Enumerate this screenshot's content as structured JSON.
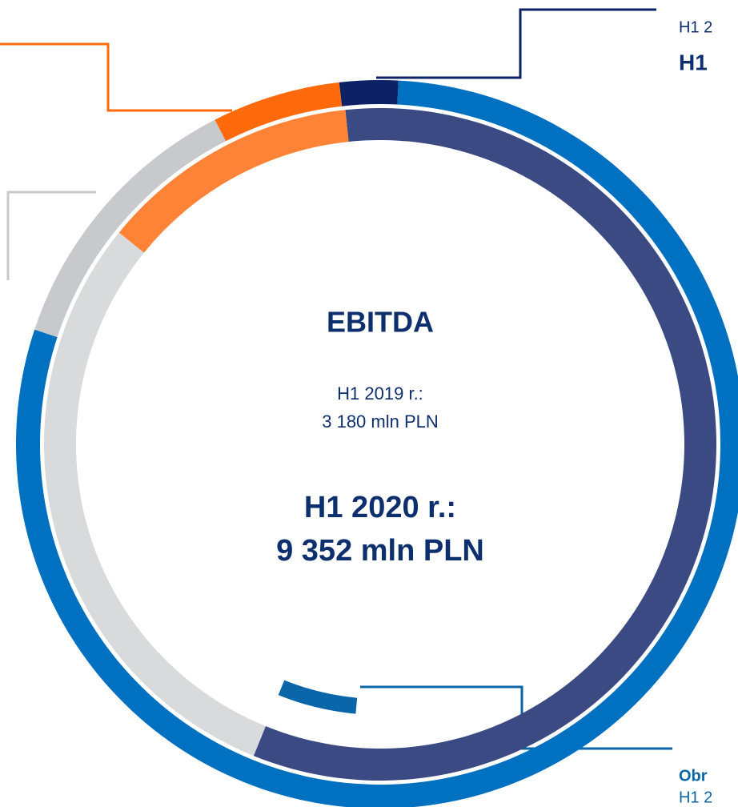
{
  "chart_data": {
    "type": "donut",
    "title": "EBITDA",
    "annotations": [
      "H1 2019 r.:",
      "3 180 mln PLN",
      "H1 2020 r.:",
      "9 352 mln PLN"
    ],
    "edge_labels": [
      "H1 2",
      "H1",
      "Obr",
      "H1 2"
    ],
    "series": [
      {
        "colors": [
          "#0d2166",
          "#0070c0",
          "#c8c9cc",
          "#ff6a0d"
        ],
        "values": [
          2.6,
          79.3,
          12.4,
          5.7
        ]
      },
      {
        "colors": [
          "#3b4a82",
          "#0a66a8",
          "#d9dadc",
          "#ff8336"
        ],
        "values": [
          57.8,
          -4.7,
          29.7,
          12.5
        ]
      }
    ]
  }
}
